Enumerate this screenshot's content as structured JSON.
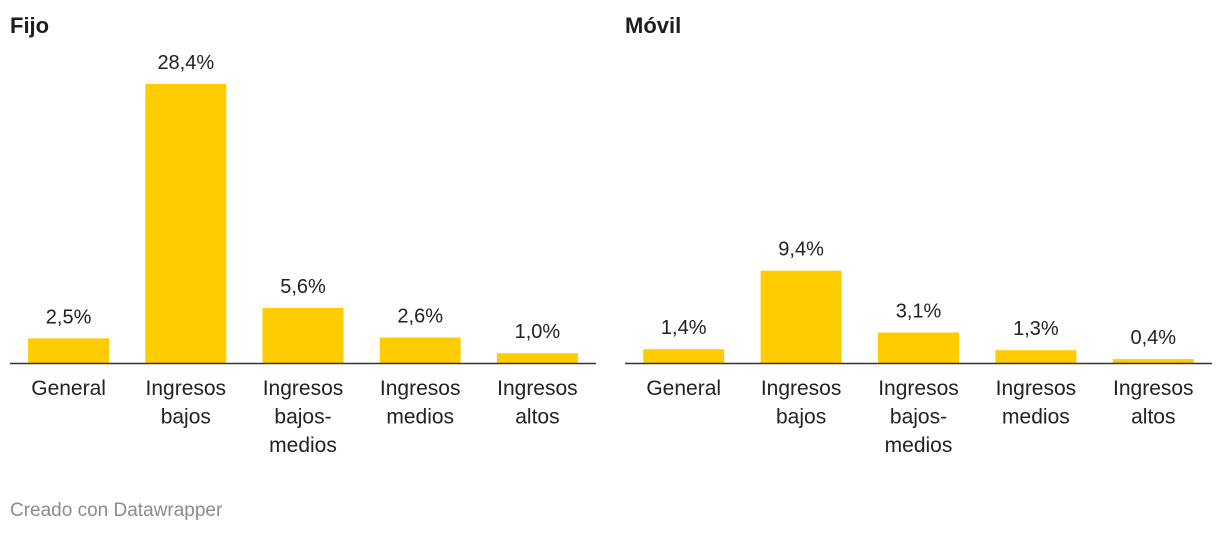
{
  "footer": "Creado con Datawrapper",
  "colors": {
    "bar": "#ffcc00",
    "baseline": "#333333"
  },
  "chart_data": [
    {
      "type": "bar",
      "title": "Fijo",
      "categories": [
        "General",
        "Ingresos bajos",
        "Ingresos bajos-medios",
        "Ingresos medios",
        "Ingresos altos"
      ],
      "category_lines": [
        [
          "General"
        ],
        [
          "Ingresos",
          "bajos"
        ],
        [
          "Ingresos",
          "bajos-",
          "medios"
        ],
        [
          "Ingresos",
          "medios"
        ],
        [
          "Ingresos",
          "altos"
        ]
      ],
      "values": [
        2.5,
        28.4,
        5.6,
        2.6,
        1.0
      ],
      "value_labels": [
        "2,5%",
        "28,4%",
        "5,6%",
        "2,6%",
        "1,0%"
      ],
      "ylim": [
        0,
        28.4
      ]
    },
    {
      "type": "bar",
      "title": "Móvil",
      "categories": [
        "General",
        "Ingresos bajos",
        "Ingresos bajos-medios",
        "Ingresos medios",
        "Ingresos altos"
      ],
      "category_lines": [
        [
          "General"
        ],
        [
          "Ingresos",
          "bajos"
        ],
        [
          "Ingresos",
          "bajos-",
          "medios"
        ],
        [
          "Ingresos",
          "medios"
        ],
        [
          "Ingresos",
          "altos"
        ]
      ],
      "values": [
        1.4,
        9.4,
        3.1,
        1.3,
        0.4
      ],
      "value_labels": [
        "1,4%",
        "9,4%",
        "3,1%",
        "1,3%",
        "0,4%"
      ],
      "ylim": [
        0,
        28.4
      ]
    }
  ]
}
